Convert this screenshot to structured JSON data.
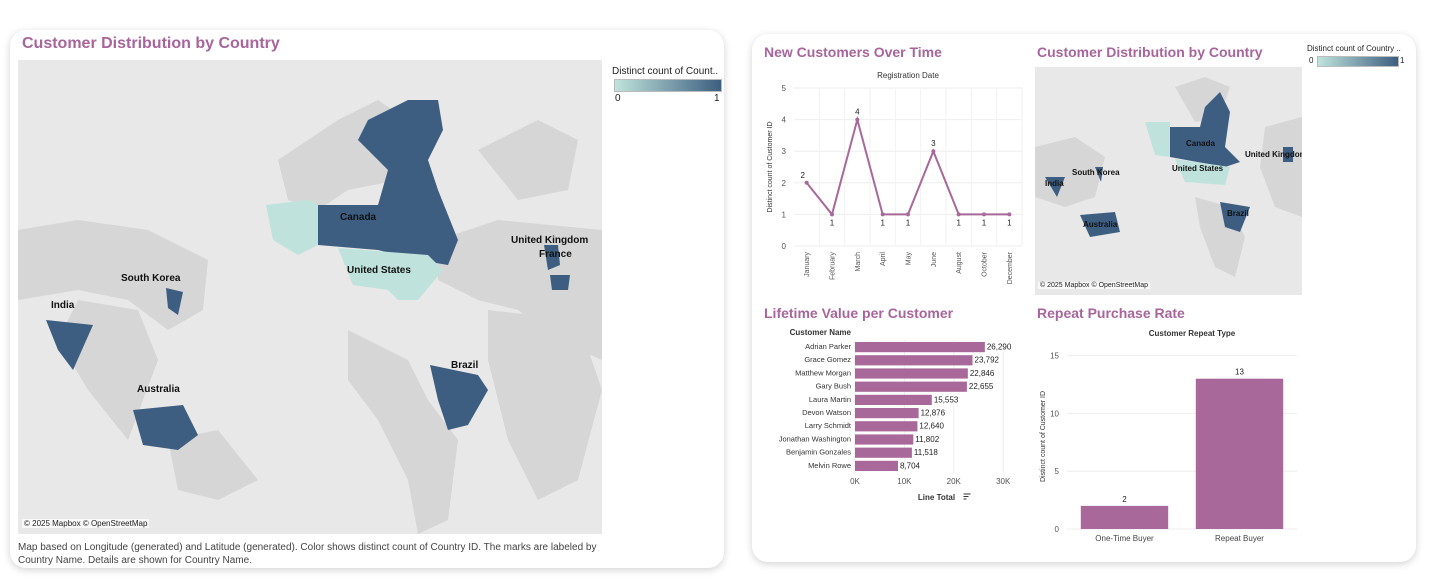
{
  "left_panel": {
    "title": "Customer Distribution by Country",
    "legend_title": "Distinct count of Count..",
    "legend_min": "0",
    "legend_max": "1",
    "credit": "© 2025 Mapbox © OpenStreetMap",
    "caption": "Map based on Longitude (generated) and Latitude (generated).  Color shows distinct count of Country ID.  The marks are labeled by Country Name.  Details are shown for Country Name.",
    "countries": [
      "Canada",
      "United States",
      "United Kingdom",
      "France",
      "South Korea",
      "India",
      "Australia",
      "Brazil"
    ]
  },
  "right_map": {
    "title": "Customer Distribution by Country",
    "legend_title": "Distinct count of Country ..",
    "legend_min": "0",
    "legend_max": "1",
    "credit": "© 2025 Mapbox © OpenStreetMap",
    "countries": [
      "Canada",
      "United States",
      "United Kingdom",
      "South Korea",
      "India",
      "Australia",
      "Brazil"
    ]
  },
  "colors": {
    "accent": "#a8659b",
    "bar": "#a8699a",
    "country_dark": "#3d5e80",
    "country_light": "#bfe3dc",
    "land": "#d6d6d6",
    "water": "#e8e8e8"
  },
  "chart_data": [
    {
      "type": "line",
      "title": "New Customers Over Time",
      "header": "Registration Date",
      "ylabel": "Distinct count of Customer ID",
      "categories": [
        "January",
        "February",
        "March",
        "April",
        "May",
        "June",
        "August",
        "October",
        "December"
      ],
      "values": [
        2,
        1,
        4,
        1,
        1,
        3,
        1,
        1,
        1
      ],
      "yticks": [
        0,
        1,
        2,
        3,
        4,
        5
      ],
      "ylim": [
        0,
        5
      ]
    },
    {
      "type": "bar",
      "orientation": "horizontal",
      "title": "Lifetime Value per Customer",
      "header": "Customer Name",
      "xlabel": "Line Total",
      "categories": [
        "Adrian Parker",
        "Grace Gomez",
        "Matthew Morgan",
        "Gary Bush",
        "Laura Martin",
        "Devon Watson",
        "Larry Schmidt",
        "Jonathan Washington",
        "Benjamin Gonzales",
        "Melvin Rowe"
      ],
      "values": [
        26290,
        23792,
        22846,
        22655,
        15553,
        12876,
        12640,
        11802,
        11518,
        8704
      ],
      "value_labels": [
        "26,290",
        "23,792",
        "22,846",
        "22,655",
        "15,553",
        "12,876",
        "12,640",
        "11,802",
        "11,518",
        "8,704"
      ],
      "xticks": [
        "0K",
        "10K",
        "20K",
        "30K"
      ],
      "xlim": [
        0,
        33000
      ]
    },
    {
      "type": "bar",
      "title": "Repeat Purchase Rate",
      "header": "Customer Repeat Type",
      "ylabel": "Distinct count of Customer ID",
      "categories": [
        "One-Time Buyer",
        "Repeat Buyer"
      ],
      "values": [
        2,
        13
      ],
      "yticks": [
        0,
        5,
        10,
        15
      ],
      "ylim": [
        0,
        16
      ]
    }
  ]
}
